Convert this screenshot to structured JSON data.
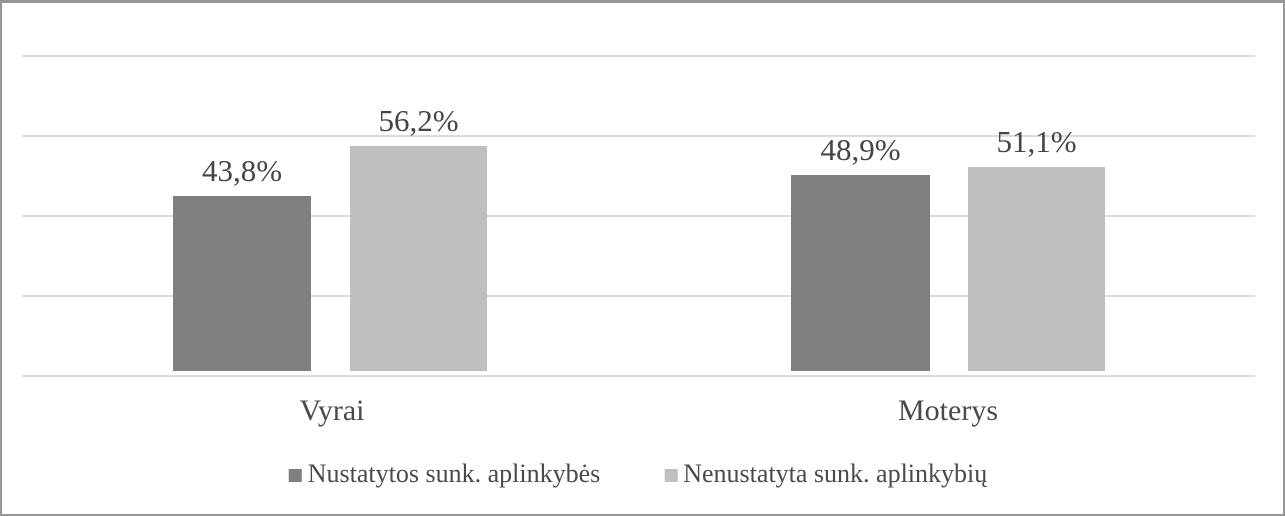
{
  "chart_data": {
    "type": "bar",
    "title": "",
    "xlabel": "",
    "ylabel": "",
    "categories": [
      "Vyrai",
      "Moterys"
    ],
    "series": [
      {
        "name": "Nustatytos sunk. aplinkybės",
        "values": [
          43.8,
          48.9
        ],
        "labels": [
          "43,8%",
          "48,9%"
        ],
        "color": "#7f7f7f"
      },
      {
        "name": "Nenustatyta sunk. aplinkybių",
        "values": [
          56.2,
          51.1
        ],
        "labels": [
          "56,2%",
          "51,1%"
        ],
        "color": "#bfbfbf"
      }
    ],
    "ylim": [
      0,
      80
    ],
    "gridlines": [
      0,
      20,
      40,
      60,
      80
    ],
    "grid": true,
    "axis_tick_labels_visible": false,
    "legend_position": "bottom",
    "value_format": "percent-comma-decimal"
  },
  "colors": {
    "gridline": "#dcdcdc",
    "border": "#979797",
    "text": "#454545",
    "background": "#ffffff"
  }
}
